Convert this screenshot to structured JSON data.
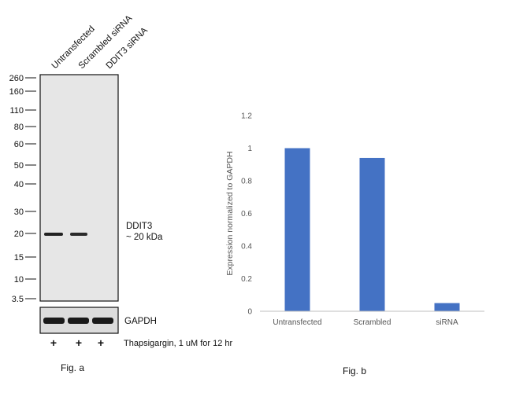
{
  "figure_a": {
    "lane_labels": [
      "Untransfected",
      "Scrambled siRNA",
      "DDIT3 siRNA"
    ],
    "mw_markers": [
      "260",
      "160",
      "110",
      "80",
      "60",
      "50",
      "40",
      "30",
      "20",
      "15",
      "10",
      "3.5"
    ],
    "target_label_1": "DDIT3",
    "target_label_2": "~ 20 kDa",
    "loading_control_label": "GAPDH",
    "treatment_marks": [
      "+",
      "+",
      "+"
    ],
    "treatment_label": "Thapsigargin, 1 uM for 12 hr",
    "caption": "Fig. a"
  },
  "figure_b": {
    "caption": "Fig. b"
  },
  "chart_data": {
    "type": "bar",
    "categories": [
      "Untransfected",
      "Scrambled",
      "siRNA"
    ],
    "values": [
      1.0,
      0.94,
      0.05
    ],
    "title": "",
    "xlabel": "",
    "ylabel": "Expression normalized to GAPDH",
    "ylim": [
      0,
      1.2
    ],
    "yticks": [
      0,
      0.2,
      0.4,
      0.6,
      0.8,
      1,
      1.2
    ],
    "ytick_labels": [
      "0",
      "0.2",
      "0.4",
      "0.6",
      "0.8",
      "1",
      "1.2"
    ],
    "grid": false,
    "bar_color": "#4472C4"
  }
}
